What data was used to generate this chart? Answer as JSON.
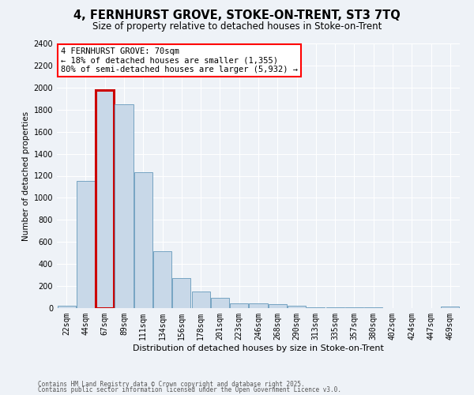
{
  "title_line1": "4, FERNHURST GROVE, STOKE-ON-TRENT, ST3 7TQ",
  "title_line2": "Size of property relative to detached houses in Stoke-on-Trent",
  "xlabel": "Distribution of detached houses by size in Stoke-on-Trent",
  "ylabel": "Number of detached properties",
  "bar_labels": [
    "22sqm",
    "44sqm",
    "67sqm",
    "89sqm",
    "111sqm",
    "134sqm",
    "156sqm",
    "178sqm",
    "201sqm",
    "223sqm",
    "246sqm",
    "268sqm",
    "290sqm",
    "313sqm",
    "335sqm",
    "357sqm",
    "380sqm",
    "402sqm",
    "424sqm",
    "447sqm",
    "469sqm"
  ],
  "bar_values": [
    25,
    1155,
    1980,
    1850,
    1230,
    515,
    275,
    150,
    90,
    45,
    40,
    38,
    18,
    10,
    8,
    5,
    4,
    3,
    2,
    2,
    15
  ],
  "bar_color": "#c8d8e8",
  "bar_edge_color": "#6699bb",
  "highlight_bar_index": 2,
  "highlight_edge_color": "#cc0000",
  "annotation_text_line1": "4 FERNHURST GROVE: 70sqm",
  "annotation_text_line2": "← 18% of detached houses are smaller (1,355)",
  "annotation_text_line3": "80% of semi-detached houses are larger (5,932) →",
  "ylim": [
    0,
    2400
  ],
  "yticks": [
    0,
    200,
    400,
    600,
    800,
    1000,
    1200,
    1400,
    1600,
    1800,
    2000,
    2200,
    2400
  ],
  "footnote1": "Contains HM Land Registry data © Crown copyright and database right 2025.",
  "footnote2": "Contains public sector information licensed under the Open Government Licence v3.0.",
  "bg_color": "#eef2f7",
  "plot_bg_color": "#eef2f7",
  "grid_color": "#ffffff",
  "title_fontsize": 10.5,
  "subtitle_fontsize": 8.5,
  "xlabel_fontsize": 8,
  "ylabel_fontsize": 7.5,
  "tick_fontsize": 7,
  "footnote_fontsize": 5.5,
  "annotation_fontsize": 7.5
}
